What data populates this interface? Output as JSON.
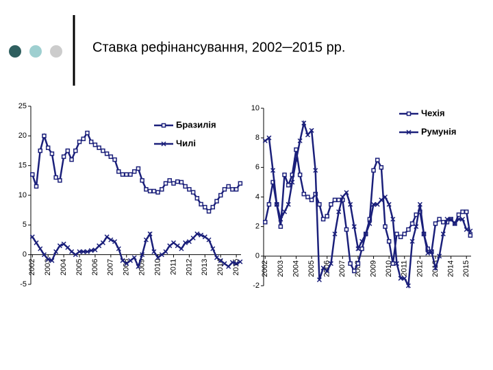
{
  "slide": {
    "title": "Ставка рефінансування, 2002─2015 рр."
  },
  "chart_data": [
    {
      "type": "line",
      "x": [
        2002,
        2002.25,
        2002.5,
        2002.75,
        2003,
        2003.25,
        2003.5,
        2003.75,
        2004,
        2004.25,
        2004.5,
        2004.75,
        2005,
        2005.25,
        2005.5,
        2005.75,
        2006,
        2006.25,
        2006.5,
        2006.75,
        2007,
        2007.25,
        2007.5,
        2007.75,
        2008,
        2008.25,
        2008.5,
        2008.75,
        2009,
        2009.25,
        2009.5,
        2009.75,
        2010,
        2010.25,
        2010.5,
        2010.75,
        2011,
        2011.25,
        2011.5,
        2011.75,
        2012,
        2012.25,
        2012.5,
        2012.75,
        2013,
        2013.25,
        2013.5,
        2013.75,
        2014,
        2014.25,
        2014.5,
        2014.75,
        2015,
        2015.25
      ],
      "series": [
        {
          "name": "Бразилія",
          "color": "#1a1f7a",
          "marker": "square",
          "values": [
            13.5,
            11.5,
            17.5,
            20,
            18,
            17,
            13,
            12.5,
            16.5,
            17.5,
            16,
            17.5,
            19,
            19.5,
            20.5,
            19,
            18.5,
            18,
            17.5,
            17,
            16.5,
            16,
            14,
            13.5,
            13.5,
            13.5,
            14,
            14.5,
            12.5,
            11,
            10.7,
            10.7,
            10.5,
            11,
            12,
            12.5,
            12,
            12.3,
            12.2,
            11.5,
            11,
            10.5,
            9.5,
            8.5,
            8,
            7.3,
            8,
            9,
            10,
            11,
            11.5,
            11,
            11,
            12
          ]
        },
        {
          "name": "Чилі",
          "color": "#1a1f7a",
          "marker": "cross",
          "values": [
            3,
            2,
            1,
            0,
            -0.8,
            -1,
            0.5,
            1.5,
            1.8,
            1.2,
            0.5,
            0,
            0.5,
            0.5,
            0.5,
            0.7,
            0.8,
            1.5,
            2,
            3,
            2.5,
            2.2,
            1,
            -1,
            -1.5,
            -1,
            -0.5,
            -2,
            0,
            2.5,
            3.5,
            0.5,
            -0.5,
            0,
            0.5,
            1.5,
            2,
            1.5,
            1,
            2,
            2.2,
            2.8,
            3.5,
            3.3,
            3,
            2.5,
            1,
            -0.5,
            -1,
            -1.5,
            -2,
            -1.3,
            -1.5,
            -1.2
          ]
        }
      ],
      "xlim": [
        2001.9,
        2015.3
      ],
      "xticks": [
        2002,
        2003,
        2004,
        2005,
        2006,
        2007,
        2008,
        2009,
        2010,
        2011,
        2012,
        2013,
        2014,
        2015
      ],
      "ylim": [
        -5,
        25
      ],
      "yticks": [
        -5,
        0,
        5,
        10,
        15,
        20,
        25
      ]
    },
    {
      "type": "line",
      "x": [
        2002,
        2002.25,
        2002.5,
        2002.75,
        2003,
        2003.25,
        2003.5,
        2003.75,
        2004,
        2004.25,
        2004.5,
        2004.75,
        2005,
        2005.25,
        2005.5,
        2005.75,
        2006,
        2006.25,
        2006.5,
        2006.75,
        2007,
        2007.25,
        2007.5,
        2007.75,
        2008,
        2008.25,
        2008.5,
        2008.75,
        2009,
        2009.25,
        2009.5,
        2009.75,
        2010,
        2010.25,
        2010.5,
        2010.75,
        2011,
        2011.25,
        2011.5,
        2011.75,
        2012,
        2012.25,
        2012.5,
        2012.75,
        2013,
        2013.25,
        2013.5,
        2013.75,
        2014,
        2014.25,
        2014.5,
        2014.75,
        2015,
        2015.25
      ],
      "series": [
        {
          "name": "Чехія",
          "color": "#1a1f7a",
          "marker": "square",
          "values": [
            2.3,
            3.5,
            5,
            3.5,
            2,
            5.5,
            4.8,
            5.5,
            7.2,
            5.5,
            4.2,
            4,
            3.8,
            4.2,
            3.5,
            2.5,
            2.7,
            3.5,
            3.8,
            3.8,
            3.8,
            1.8,
            -0.5,
            -1,
            -0.5,
            0.5,
            1.5,
            2.5,
            5.8,
            6.5,
            6,
            2,
            1,
            -0.5,
            1.5,
            1.3,
            1.5,
            1.8,
            2.2,
            2.8,
            3,
            1.5,
            0.5,
            0.3,
            2.2,
            2.5,
            2.3,
            2.3,
            2.5,
            2.2,
            2.8,
            3,
            3,
            1.4
          ]
        },
        {
          "name": "Румунія",
          "color": "#1a1f7a",
          "marker": "cross",
          "values": [
            7.8,
            8,
            5.8,
            3.5,
            2.5,
            3,
            3.5,
            5,
            6.5,
            7.8,
            9,
            8.2,
            8.5,
            5.8,
            -1.6,
            -0.8,
            -1,
            -0.5,
            1.5,
            3,
            4,
            4.3,
            3.5,
            2,
            0.5,
            1,
            1.5,
            2.2,
            3.5,
            3.5,
            3.8,
            4,
            3.5,
            2.5,
            -0.5,
            -1.5,
            -1.5,
            -2,
            1,
            2,
            3.5,
            1.5,
            0.2,
            0.3,
            -0.8,
            0,
            1.5,
            2.5,
            2.5,
            2.2,
            2.5,
            2.5,
            1.8,
            1.7
          ]
        }
      ],
      "xlim": [
        2001.9,
        2015.3
      ],
      "xticks": [
        2002,
        2003,
        2004,
        2005,
        2006,
        2007,
        2008,
        2009,
        2010,
        2011,
        2012,
        2013,
        2014,
        2015
      ],
      "ylim": [
        -2,
        10
      ],
      "yticks": [
        -2,
        0,
        2,
        4,
        6,
        8,
        10
      ]
    }
  ]
}
